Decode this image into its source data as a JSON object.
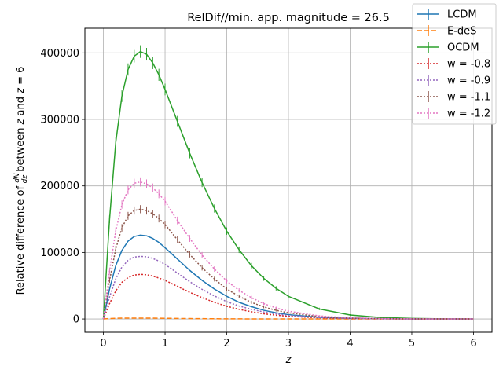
{
  "chart_data": {
    "type": "line",
    "title": "RelDif//min. app. magnitude = 26.5",
    "xlabel": "z",
    "ylabel_parts": {
      "pre": "Relative difference of ",
      "frac_num": "dN",
      "frac_den": "dz",
      "mid": " between ",
      "z1": "z",
      "and": " and ",
      "z2": "z",
      "eq": " = 6"
    },
    "xlim": [
      -0.3,
      6.3
    ],
    "ylim": [
      -20000,
      437000
    ],
    "xticks": [
      0,
      1,
      2,
      3,
      4,
      5,
      6
    ],
    "yticks": [
      0,
      100000,
      200000,
      300000,
      400000
    ],
    "grid": true,
    "legend_position": "top-right",
    "x": [
      0,
      0.1,
      0.2,
      0.3,
      0.4,
      0.5,
      0.6,
      0.7,
      0.8,
      0.9,
      1.0,
      1.2,
      1.4,
      1.6,
      1.8,
      2.0,
      2.2,
      2.4,
      2.6,
      2.8,
      3.0,
      3.5,
      4.0,
      4.5,
      5.0,
      5.5,
      6.0
    ],
    "series": [
      {
        "name": "LCDM",
        "color": "#1f77b4",
        "dash": "",
        "errorbars": false,
        "values": [
          0,
          45000,
          80000,
          103000,
          117000,
          124000,
          126000,
          125000,
          121000,
          115000,
          107000,
          90000,
          73000,
          58000,
          45000,
          34000,
          25000,
          18500,
          13000,
          9300,
          6500,
          2500,
          900,
          300,
          100,
          30,
          0
        ]
      },
      {
        "name": "E-deS",
        "color": "#ff7f0e",
        "dash": "6,3",
        "errorbars": false,
        "values": [
          0,
          600,
          1000,
          1200,
          1300,
          1300,
          1300,
          1250,
          1200,
          1100,
          1000,
          800,
          600,
          450,
          330,
          240,
          170,
          120,
          80,
          55,
          40,
          15,
          5,
          2,
          1,
          0,
          0
        ]
      },
      {
        "name": "OCDM",
        "color": "#2ca02c",
        "dash": "",
        "errorbars": true,
        "values": [
          0,
          150000,
          265000,
          335000,
          375000,
          395000,
          402000,
          398000,
          385000,
          367000,
          345000,
          297000,
          249000,
          205000,
          166000,
          132000,
          104000,
          80000,
          61000,
          46000,
          34000,
          15000,
          6000,
          2200,
          800,
          250,
          0
        ]
      },
      {
        "name": "w = -0.8",
        "color": "#d62728",
        "dash": "2,2",
        "errorbars": false,
        "values": [
          0,
          23000,
          42000,
          55000,
          62000,
          66000,
          67000,
          66500,
          64500,
          61500,
          58000,
          49000,
          40000,
          32000,
          25000,
          19000,
          14500,
          10800,
          7800,
          5600,
          4000,
          1600,
          600,
          200,
          70,
          20,
          0
        ]
      },
      {
        "name": "w = -0.9",
        "color": "#9467bd",
        "dash": "2,2",
        "errorbars": false,
        "values": [
          0,
          33000,
          60000,
          78000,
          88000,
          93000,
          94000,
          93500,
          91000,
          87000,
          82000,
          69000,
          56000,
          44500,
          34500,
          26000,
          19500,
          14500,
          10500,
          7500,
          5300,
          2100,
          800,
          270,
          90,
          25,
          0
        ]
      },
      {
        "name": "w = -1.1",
        "color": "#8c564b",
        "dash": "2,2",
        "errorbars": true,
        "values": [
          0,
          58000,
          105000,
          137000,
          155000,
          163000,
          165000,
          163000,
          158000,
          151000,
          142000,
          119000,
          97000,
          77000,
          60000,
          45000,
          34000,
          25000,
          18000,
          13000,
          9200,
          3600,
          1400,
          500,
          160,
          50,
          0
        ]
      },
      {
        "name": "w = -1.2",
        "color": "#e377c2",
        "dash": "2,2",
        "errorbars": true,
        "values": [
          0,
          72000,
          132000,
          172000,
          194000,
          204000,
          206000,
          203000,
          197000,
          188000,
          177000,
          148000,
          121000,
          96000,
          75000,
          57000,
          43000,
          32000,
          23000,
          16500,
          11700,
          4600,
          1800,
          600,
          200,
          60,
          0
        ]
      }
    ]
  }
}
